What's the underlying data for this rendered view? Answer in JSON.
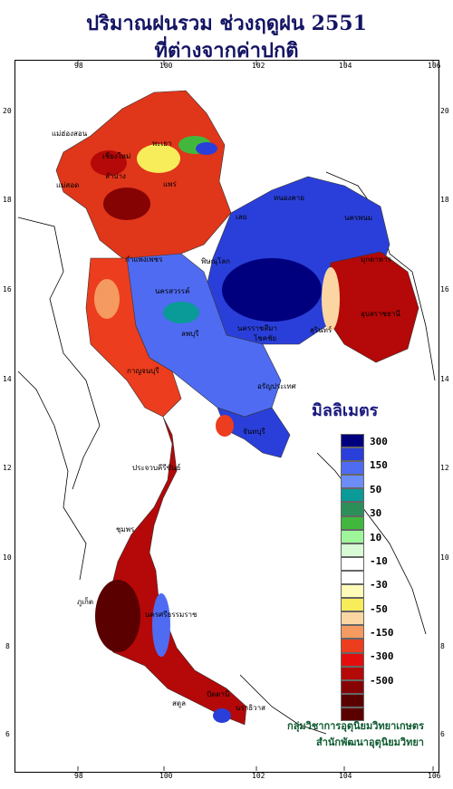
{
  "title": {
    "line1": "ปริมาณฝนรวม ช่วงฤดูฝน 2551",
    "line2": "ที่ต่างจากค่าปกติ"
  },
  "axes": {
    "longitude_labels": [
      "98",
      "100",
      "102",
      "104",
      "106"
    ],
    "latitude_labels": [
      "20",
      "18",
      "16",
      "14",
      "12",
      "10",
      "8",
      "6"
    ]
  },
  "legend": {
    "title": "มิลลิเมตร",
    "levels": [
      {
        "label": "300",
        "color": "#00007f"
      },
      {
        "label": "",
        "color": "#2a3fd9"
      },
      {
        "label": "150",
        "color": "#4f6bf2"
      },
      {
        "label": "",
        "color": "#6c8df7"
      },
      {
        "label": "50",
        "color": "#0a9a98"
      },
      {
        "label": "",
        "color": "#2c8f5a"
      },
      {
        "label": "30",
        "color": "#41b83d"
      },
      {
        "label": "",
        "color": "#9ef59a"
      },
      {
        "label": "10",
        "color": "#d8fbd6"
      },
      {
        "label": "",
        "color": "#ffffff"
      },
      {
        "label": "-10",
        "color": "#ffffff"
      },
      {
        "label": "",
        "color": "#fffbb8"
      },
      {
        "label": "-30",
        "color": "#f7ec5a"
      },
      {
        "label": "",
        "color": "#fcd6a2"
      },
      {
        "label": "-50",
        "color": "#f59a60"
      },
      {
        "label": "",
        "color": "#ec3d1e"
      },
      {
        "label": "-150",
        "color": "#e40d0d"
      },
      {
        "label": "",
        "color": "#b50808"
      },
      {
        "label": "-300",
        "color": "#860303"
      },
      {
        "label": "",
        "color": "#5a0000"
      },
      {
        "label": "-500",
        "color": "#5a0000"
      }
    ]
  },
  "credits": {
    "line1": "กลุ่มวิชาการอุตุนิยมวิทยาเกษตร",
    "line2": "สำนักพัฒนาอุตุนิยมวิทยา"
  },
  "places": [
    {
      "name": "แม่ฮ่องสอน"
    },
    {
      "name": "เชียงใหม่"
    },
    {
      "name": "ลำปาง"
    },
    {
      "name": "พะเยา"
    },
    {
      "name": "แพร่"
    },
    {
      "name": "แม่สอด"
    },
    {
      "name": "หนองคาย"
    },
    {
      "name": "นครพนม"
    },
    {
      "name": "เลย"
    },
    {
      "name": "มุกดาหาร"
    },
    {
      "name": "กำแพงเพชร"
    },
    {
      "name": "พิษณุโลก"
    },
    {
      "name": "อุบลราชธานี"
    },
    {
      "name": "นครสวรรค์"
    },
    {
      "name": "สุรินทร์"
    },
    {
      "name": "นครราชสีมา"
    },
    {
      "name": "โชคชัย"
    },
    {
      "name": "ลพบุรี"
    },
    {
      "name": "กาญจนบุรี"
    },
    {
      "name": "อรัญประเทศ"
    },
    {
      "name": "จันทบุรี"
    },
    {
      "name": "ประจวบคีรีขันธ์"
    },
    {
      "name": "ชุมพร"
    },
    {
      "name": "นครศรีธรรมราช"
    },
    {
      "name": "ปัตตานี"
    },
    {
      "name": "นราธิวาส"
    },
    {
      "name": "ภูเก็ต"
    },
    {
      "name": "สตูล"
    }
  ]
}
